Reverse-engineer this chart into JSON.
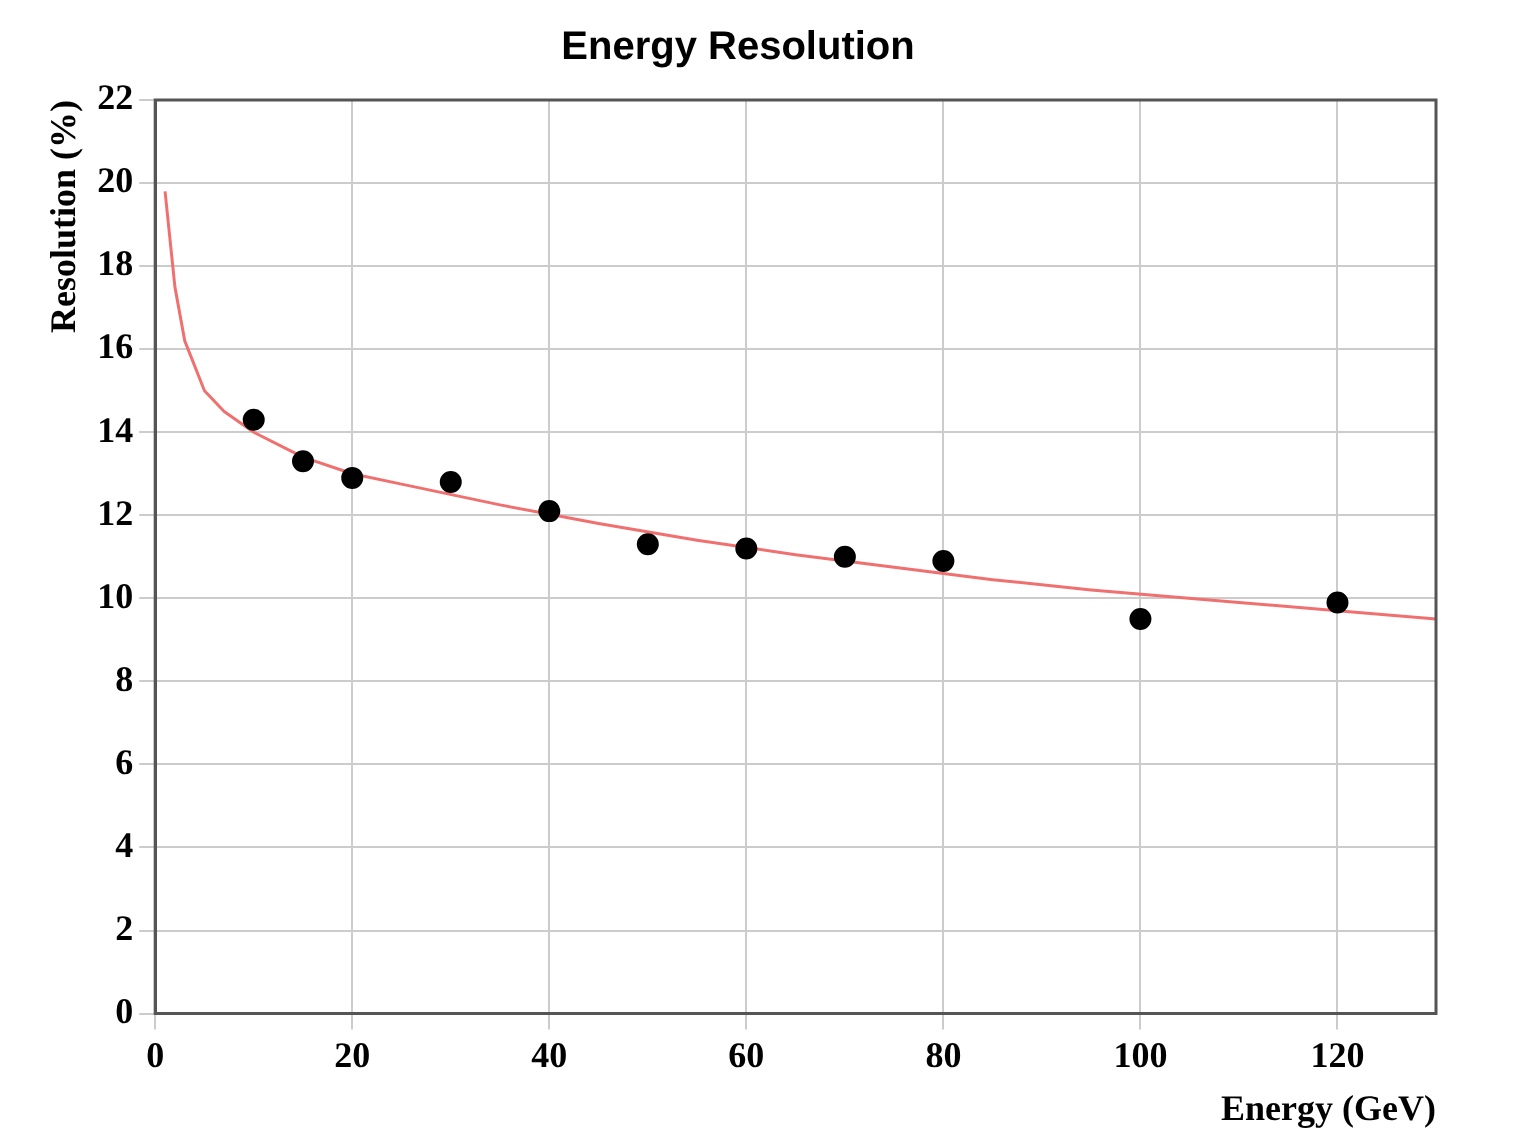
{
  "chart_data": {
    "type": "scatter",
    "title": "Energy Resolution",
    "xlabel": "Energy (GeV)",
    "ylabel": "Resolution (%)",
    "xlim": [
      0,
      130
    ],
    "xticks": [
      0,
      20,
      40,
      60,
      80,
      100,
      120
    ],
    "ylim": [
      0,
      22
    ],
    "yticks": [
      0,
      2,
      4,
      6,
      8,
      10,
      12,
      14,
      16,
      18,
      20,
      22
    ],
    "grid": true,
    "legend": false,
    "marker": "circle",
    "series": [
      {
        "type": "scatter",
        "color": "#000000",
        "x": [
          10,
          15,
          20,
          30,
          40,
          50,
          60,
          70,
          80,
          100,
          120
        ],
        "values": [
          14.3,
          13.3,
          12.9,
          12.8,
          12.1,
          11.3,
          11.2,
          11.0,
          10.9,
          9.5,
          9.9
        ]
      },
      {
        "type": "line",
        "color": "#f07070",
        "marker": "none",
        "x": [
          1,
          2,
          3,
          5,
          7,
          10,
          15,
          20,
          25,
          35,
          45,
          55,
          65,
          75,
          85,
          95,
          110,
          120,
          130
        ],
        "values": [
          19.8,
          17.5,
          16.2,
          15.0,
          14.5,
          14.0,
          13.4,
          13.0,
          12.75,
          12.25,
          11.8,
          11.4,
          11.05,
          10.75,
          10.45,
          10.2,
          9.9,
          9.7,
          9.5
        ]
      }
    ]
  }
}
